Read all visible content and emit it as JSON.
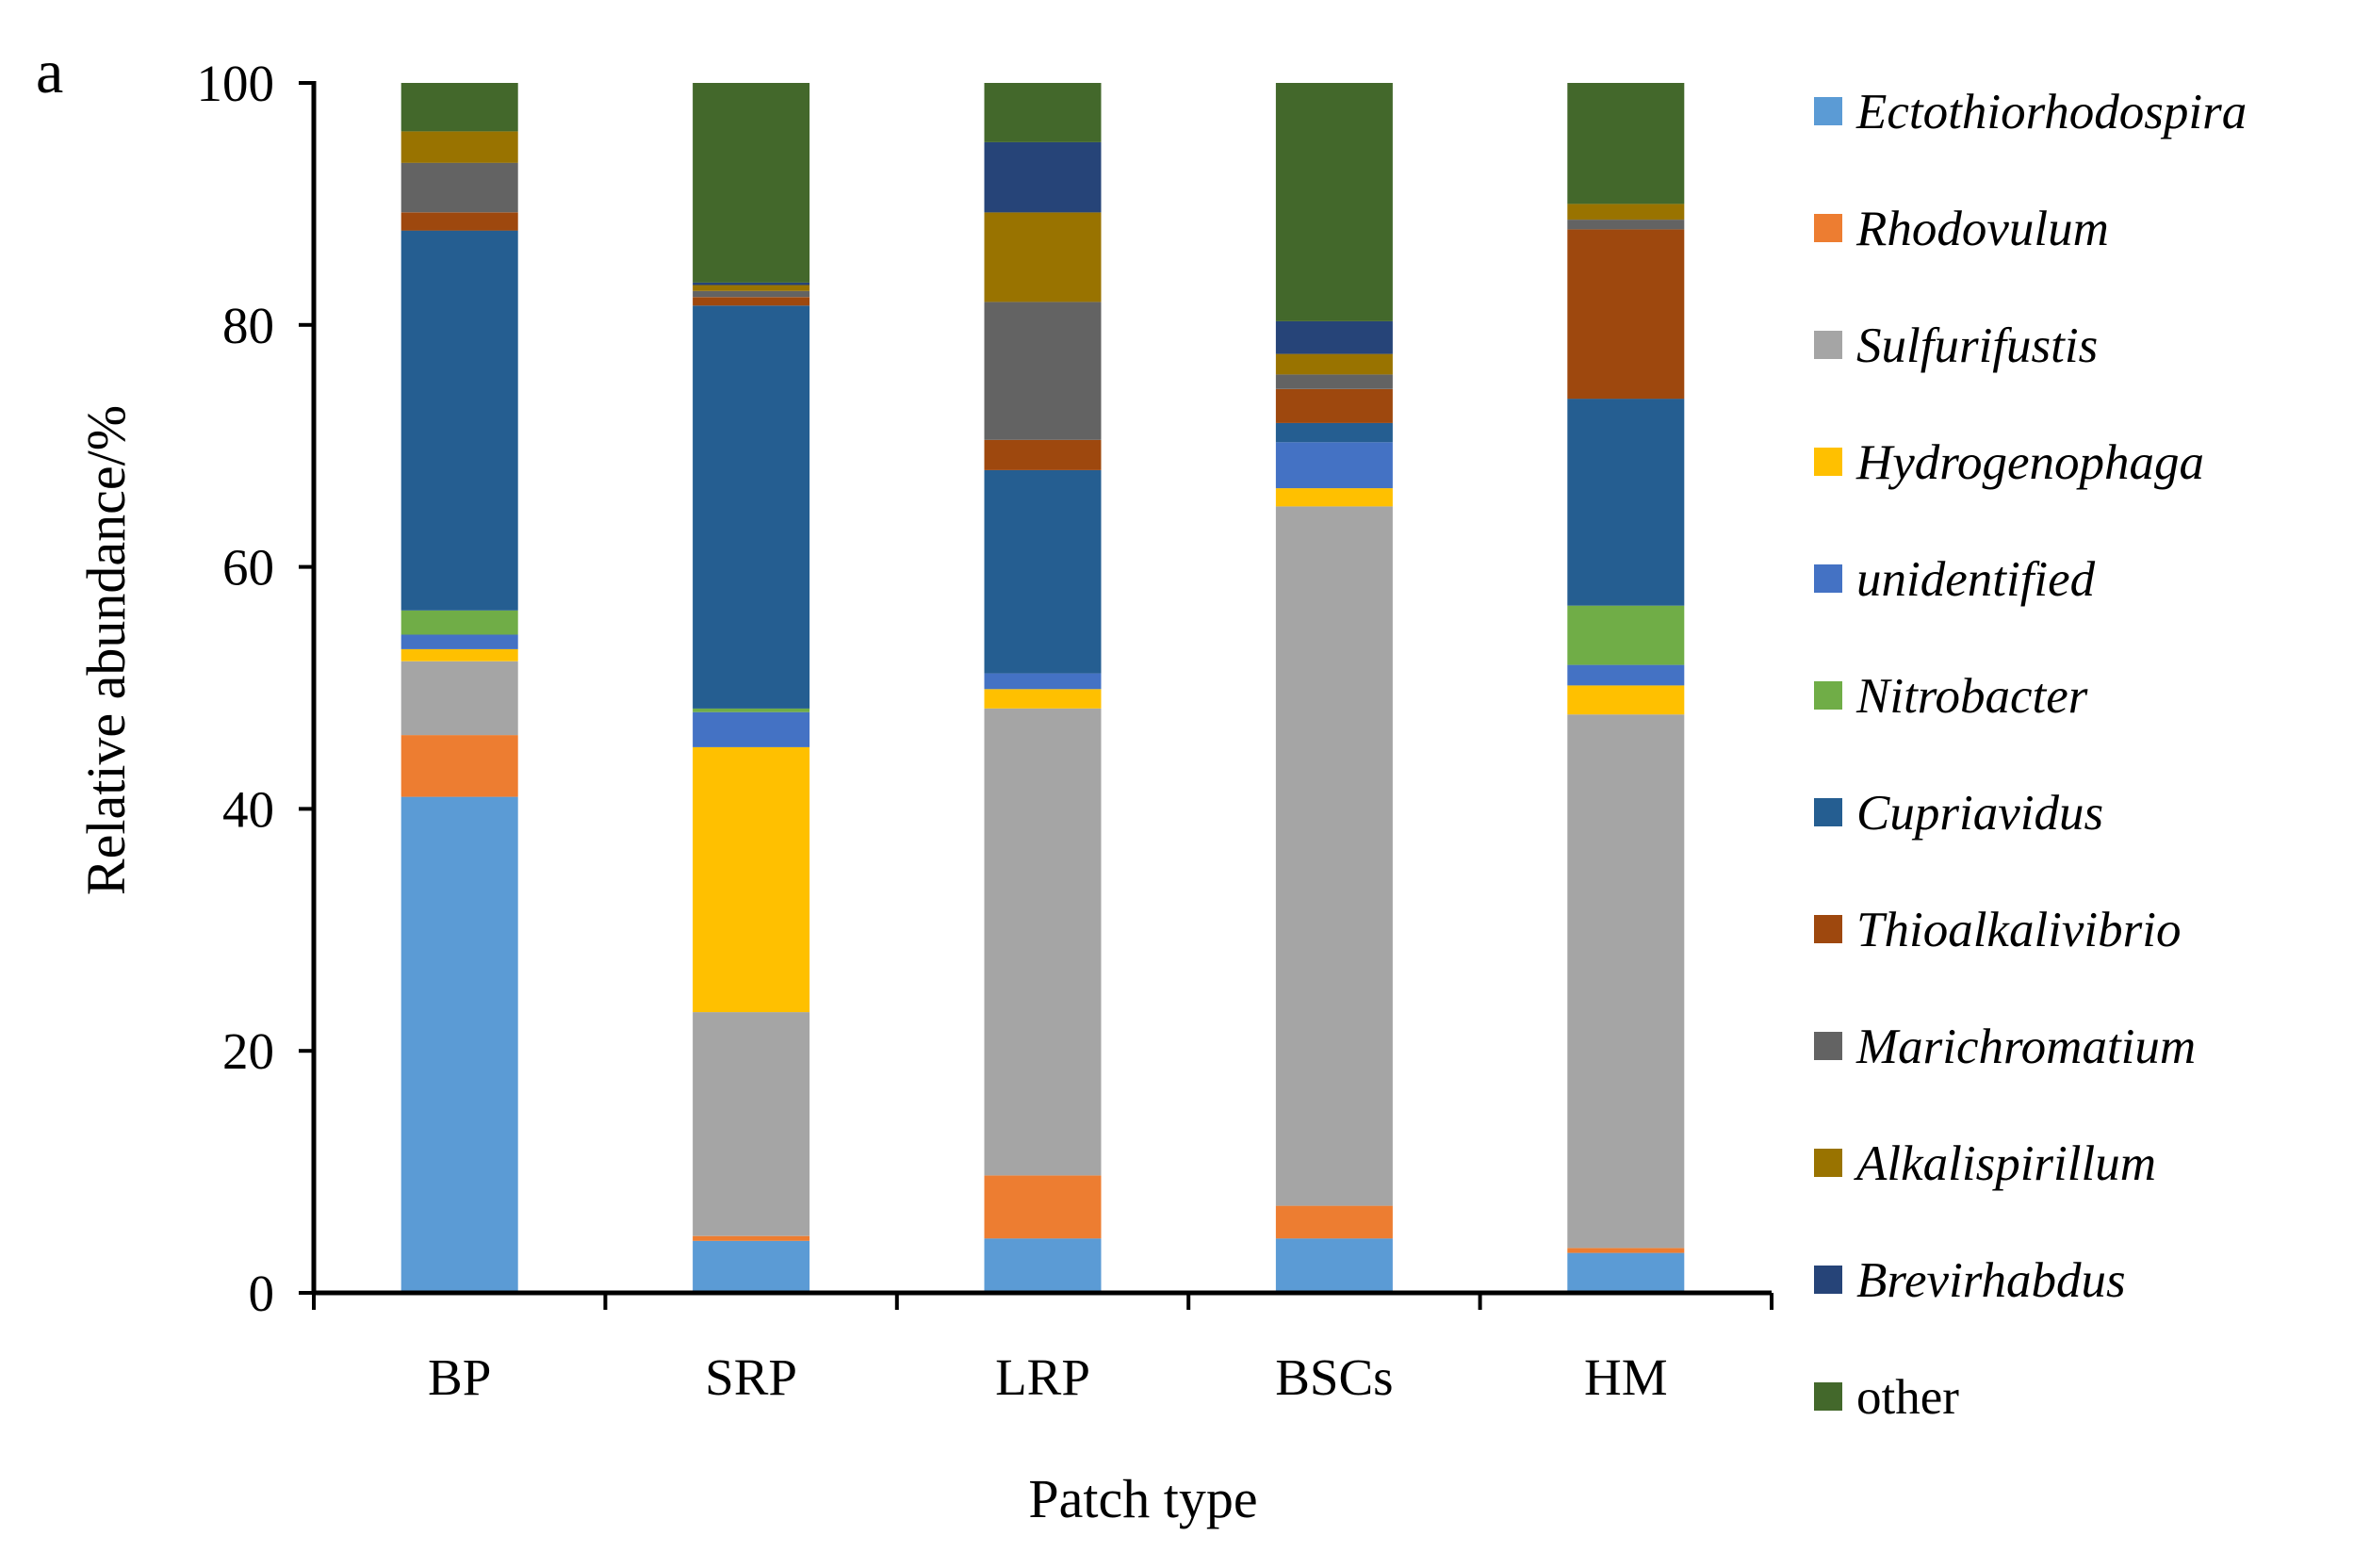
{
  "panel_label": "a",
  "chart_data": {
    "type": "bar",
    "stacked": true,
    "xlabel": "Patch type",
    "ylabel": "Relative abundance/%",
    "ylim": [
      0,
      100
    ],
    "yticks": [
      0,
      20,
      40,
      60,
      80,
      100
    ],
    "grid": false,
    "legend_position": "right",
    "categories": [
      "BP",
      "SRP",
      "LRP",
      "BSCs",
      "HM"
    ],
    "series": [
      {
        "name": "Ectothiorhodospira",
        "italic": true,
        "color": "#5B9BD5",
        "values": [
          41.0,
          4.3,
          4.5,
          4.5,
          3.3
        ]
      },
      {
        "name": "Rhodovulum",
        "italic": true,
        "color": "#ED7D31",
        "values": [
          5.1,
          0.4,
          5.2,
          2.7,
          0.4
        ]
      },
      {
        "name": "Sulfurifustis",
        "italic": true,
        "color": "#A5A5A5",
        "values": [
          6.1,
          18.5,
          38.6,
          57.8,
          44.1
        ]
      },
      {
        "name": "Hydrogenophaga",
        "italic": true,
        "color": "#FFC000",
        "values": [
          1.0,
          21.9,
          1.6,
          1.5,
          2.4
        ]
      },
      {
        "name": "unidentified",
        "italic": true,
        "color": "#4472C4",
        "values": [
          1.2,
          2.9,
          1.3,
          3.8,
          1.7
        ]
      },
      {
        "name": "Nitrobacter",
        "italic": true,
        "color": "#70AD47",
        "values": [
          2.0,
          0.3,
          0.0,
          0.0,
          4.9
        ]
      },
      {
        "name": "Cupriavidus",
        "italic": true,
        "color": "#255E91",
        "values": [
          31.4,
          33.3,
          16.8,
          1.6,
          17.1
        ]
      },
      {
        "name": "Thioalkalivibrio",
        "italic": true,
        "color": "#9E480E",
        "values": [
          1.5,
          0.7,
          2.5,
          2.8,
          14.0
        ]
      },
      {
        "name": "Marichromatium",
        "italic": true,
        "color": "#636363",
        "values": [
          4.1,
          0.5,
          11.4,
          1.2,
          0.8
        ]
      },
      {
        "name": "Alkalispirillum",
        "italic": true,
        "color": "#997300",
        "values": [
          2.6,
          0.5,
          7.4,
          1.7,
          1.3
        ]
      },
      {
        "name": "Brevirhabdus",
        "italic": true,
        "color": "#264478",
        "values": [
          0.0,
          0.2,
          5.8,
          2.7,
          0.0
        ]
      },
      {
        "name": "other",
        "italic": false,
        "color": "#43682B",
        "values": [
          4.0,
          16.5,
          4.9,
          19.7,
          10.0
        ]
      }
    ]
  }
}
